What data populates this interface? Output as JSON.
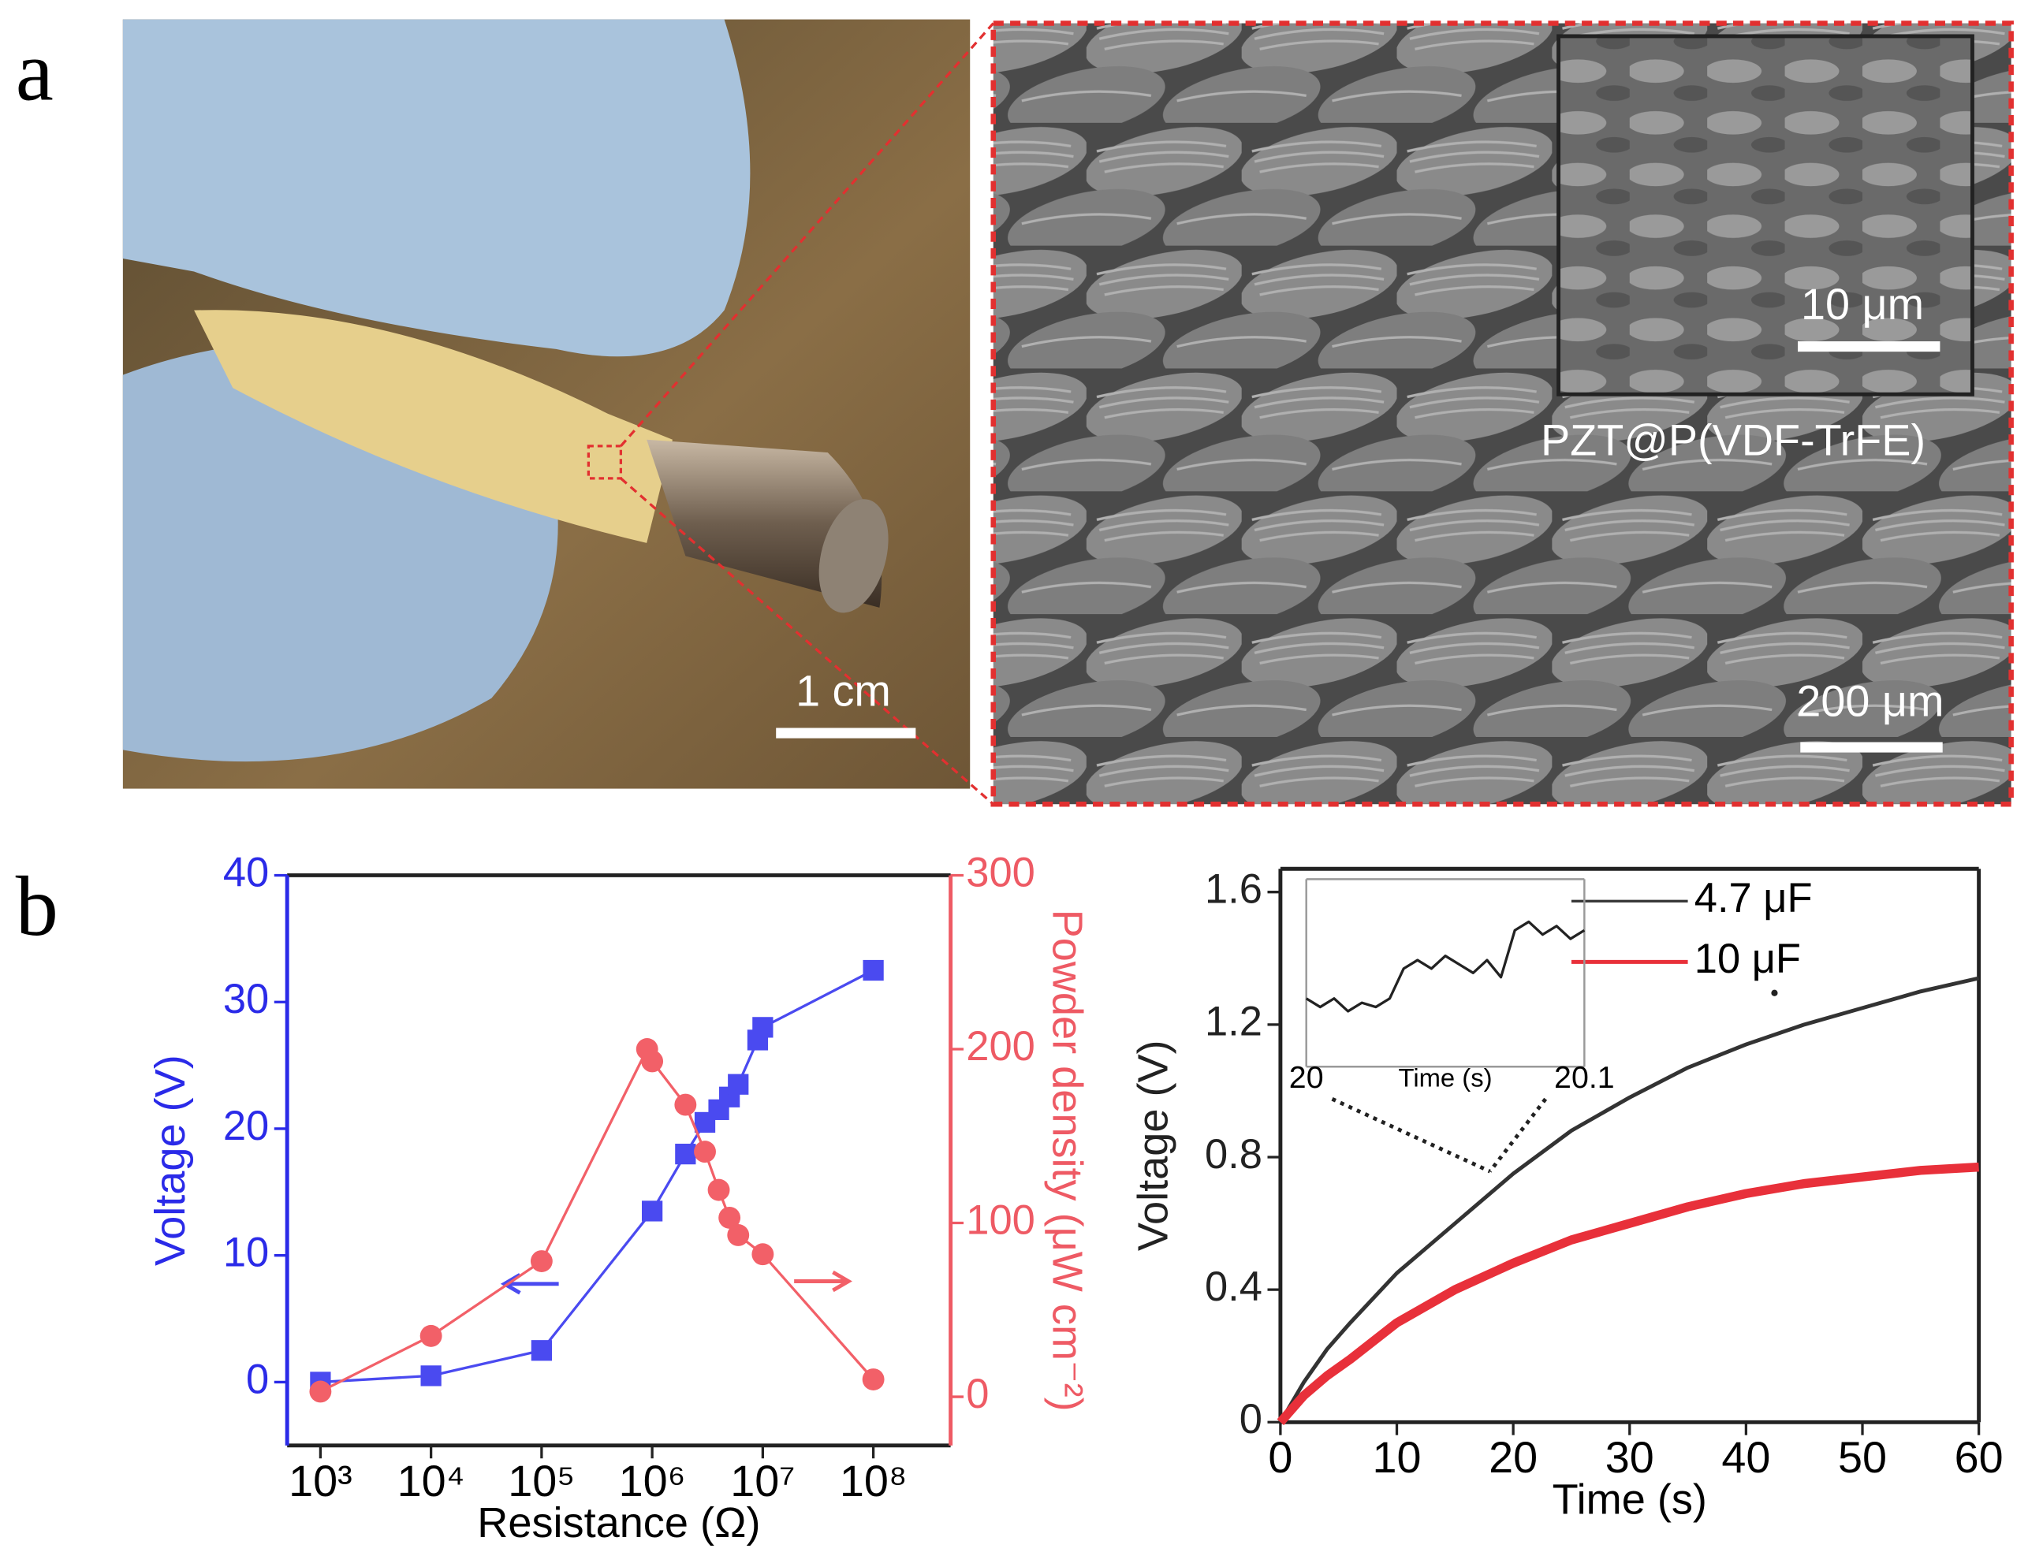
{
  "panel_labels": {
    "a": "a",
    "b": "b"
  },
  "photo": {
    "scale_bar": "1 cm"
  },
  "micrograph": {
    "scale_bar": "200 μm",
    "inset_scale_bar": "10 μm",
    "caption": "PZT@P(VDF-TrFE)"
  },
  "chart_data": [
    {
      "type": "line",
      "xscale": "log",
      "xlabel": "Resistance (Ω)",
      "ylabel": "Voltage (V)",
      "y2label": "Powder density (μW cm⁻²)",
      "xlim": [
        500,
        500000000
      ],
      "xticks": [
        {
          "value": 1000,
          "label": "10³"
        },
        {
          "value": 10000,
          "label": "10⁴"
        },
        {
          "value": 100000,
          "label": "10⁵"
        },
        {
          "value": 1000000,
          "label": "10⁶"
        },
        {
          "value": 10000000,
          "label": "10⁷"
        },
        {
          "value": 100000000,
          "label": "10⁸"
        }
      ],
      "ylim": [
        -5,
        40
      ],
      "yticks": [
        0,
        10,
        20,
        30,
        40
      ],
      "ycolor": "#2a2ae8",
      "y2lim": [
        -28,
        300
      ],
      "y2ticks": [
        0,
        100,
        200,
        300
      ],
      "y2color": "#ee5a64",
      "series": [
        {
          "color": "#4a4af0",
          "marker": "square",
          "x": [
            1000,
            10000,
            100000,
            1000000,
            2000000,
            3000000,
            4000000,
            5000000,
            6000000,
            9000000,
            10000000,
            100000000
          ],
          "values": [
            0,
            0.5,
            2.5,
            13.5,
            18,
            20.5,
            21.5,
            22.5,
            23.5,
            27,
            28,
            32.5
          ]
        },
        {
          "color": "#f26068",
          "marker": "circle",
          "axis": "y2",
          "x": [
            1000,
            10000,
            100000,
            900000,
            1000000,
            2000000,
            3000000,
            4000000,
            5000000,
            6000000,
            10000000,
            100000000
          ],
          "values": [
            3,
            35,
            78,
            200,
            193,
            168,
            141,
            119,
            103,
            93,
            82,
            10
          ]
        }
      ]
    },
    {
      "type": "line",
      "xlabel": "Time (s)",
      "ylabel": "Voltage (V)",
      "xlim": [
        0,
        60
      ],
      "xticks": [
        0,
        10,
        20,
        30,
        40,
        50,
        60
      ],
      "ylim": [
        0,
        1.67
      ],
      "yticks": [
        0,
        0.4,
        0.8,
        1.2,
        1.6
      ],
      "x": [
        0,
        2,
        4,
        6,
        10,
        15,
        20,
        25,
        30,
        35,
        40,
        45,
        50,
        55,
        60
      ],
      "series": [
        {
          "name": "4.7 μF",
          "color": "#333333",
          "width": 3,
          "values": [
            0,
            0.12,
            0.22,
            0.3,
            0.45,
            0.6,
            0.75,
            0.88,
            0.98,
            1.07,
            1.14,
            1.2,
            1.25,
            1.3,
            1.34
          ]
        },
        {
          "name": "10 μF",
          "color": "#e8303a",
          "width": 7,
          "values": [
            0,
            0.08,
            0.14,
            0.19,
            0.3,
            0.4,
            0.48,
            0.55,
            0.6,
            0.65,
            0.69,
            0.72,
            0.74,
            0.76,
            0.77
          ]
        }
      ]
    },
    {
      "type": "line",
      "xlabel": "Time (s)",
      "xlim": [
        20,
        20.1
      ],
      "xticks": [
        20,
        20.1
      ],
      "ylim": [
        0.728,
        0.772
      ],
      "x": [
        20,
        20.005,
        20.01,
        20.015,
        20.02,
        20.025,
        20.03,
        20.035,
        20.04,
        20.045,
        20.05,
        20.055,
        20.06,
        20.065,
        20.07,
        20.075,
        20.08,
        20.085,
        20.09,
        20.095,
        20.1
      ],
      "series": [
        {
          "color": "#222222",
          "width": 2,
          "values": [
            0.744,
            0.742,
            0.744,
            0.741,
            0.743,
            0.742,
            0.744,
            0.751,
            0.753,
            0.751,
            0.754,
            0.752,
            0.75,
            0.753,
            0.749,
            0.76,
            0.762,
            0.759,
            0.761,
            0.758,
            0.76
          ]
        }
      ]
    }
  ]
}
